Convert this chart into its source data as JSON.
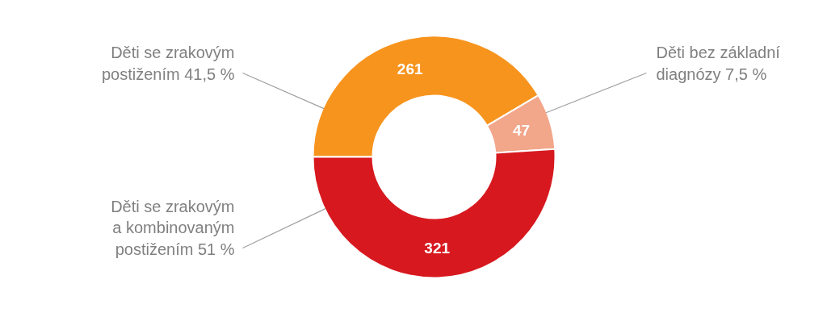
{
  "chart_data": {
    "type": "donut",
    "categories": [
      "Děti se zrakovým postižením 41,5 %",
      "Děti bez základní diagnózy 7,5 %",
      "Děti se zrakovým a kombinovaným postižením 51 %"
    ],
    "values": [
      261,
      47,
      321
    ],
    "colors": [
      "#f7941d",
      "#f2a68a",
      "#d7191f"
    ],
    "data_labels": true,
    "legend": false
  }
}
